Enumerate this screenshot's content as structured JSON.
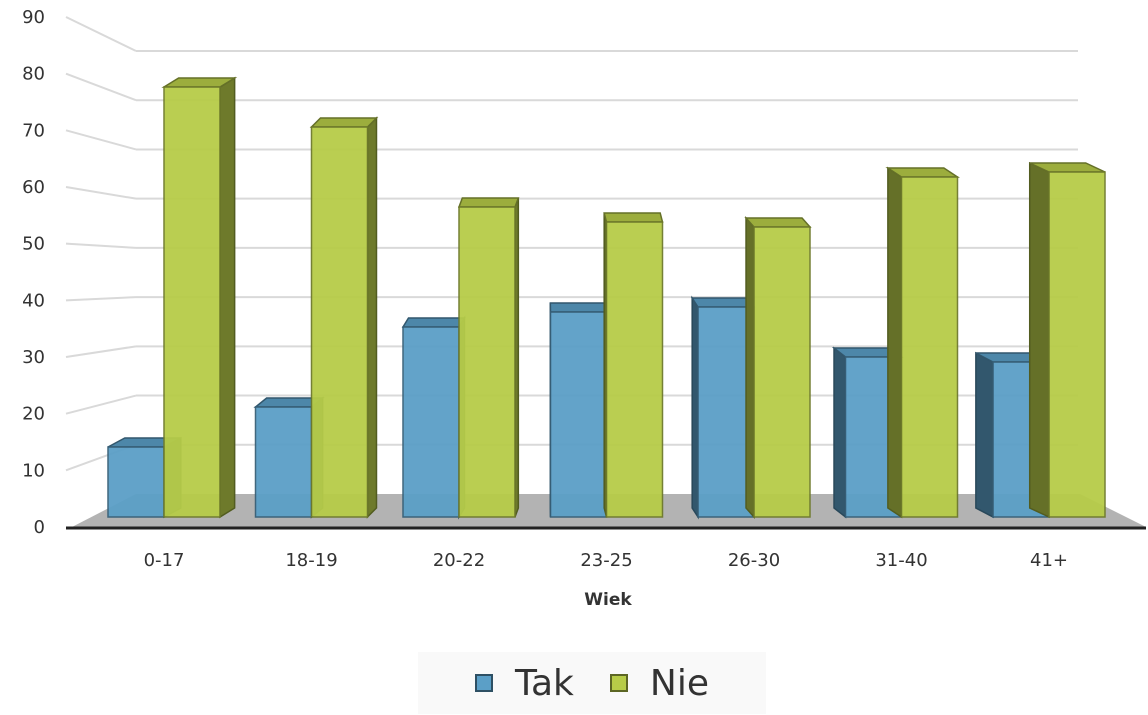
{
  "chart_data": {
    "type": "bar",
    "style": "3d-clustered-column",
    "title": "",
    "xlabel": "Wiek",
    "ylabel": "",
    "ylim": [
      0,
      90
    ],
    "yticks": [
      "0",
      "10",
      "20",
      "30",
      "40",
      "50",
      "60",
      "70",
      "80",
      "90"
    ],
    "grid": true,
    "legend_position": "bottom",
    "categories": [
      "0-17",
      "18-19",
      "20-22",
      "23-25",
      "26-30",
      "31-40",
      "41+"
    ],
    "series": [
      {
        "name": "Tak",
        "color": "#5b9fc7",
        "values": [
          14,
          22,
          38,
          41,
          42,
          32,
          31
        ]
      },
      {
        "name": "Nie",
        "color": "#b7cc48",
        "values": [
          86,
          78,
          62,
          59,
          58,
          68,
          69
        ]
      }
    ]
  }
}
